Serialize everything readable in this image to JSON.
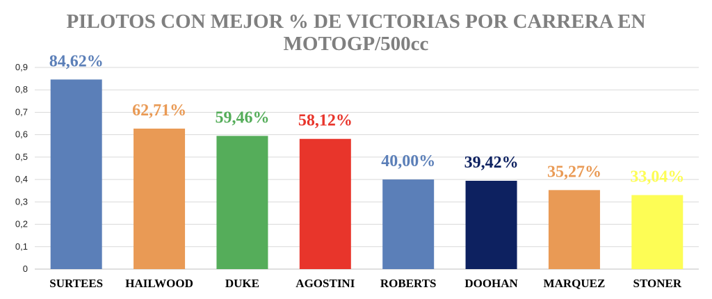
{
  "chart_data": {
    "type": "bar",
    "title_lines": [
      "PILOTOS CON MEJOR % DE VICTORIAS POR CARRERA EN",
      "MOTOGP/500cc"
    ],
    "categories": [
      "SURTEES",
      "HAILWOOD",
      "DUKE",
      "AGOSTINI",
      "ROBERTS",
      "DOOHAN",
      "MARQUEZ",
      "STONER"
    ],
    "values": [
      0.8462,
      0.6271,
      0.5946,
      0.5812,
      0.4,
      0.3942,
      0.3527,
      0.3304
    ],
    "data_labels": [
      "84,62%",
      "62,71%",
      "59,46%",
      "58,12%",
      "40,00%",
      "39,42%",
      "35,27%",
      "33,04%"
    ],
    "colors": [
      "#5b7fb8",
      "#e99a55",
      "#55ad5a",
      "#e8352b",
      "#5b7fb8",
      "#0d2160",
      "#e99a55",
      "#fdfd55"
    ],
    "y_ticks": [
      "0",
      "0,1",
      "0,2",
      "0,3",
      "0,4",
      "0,5",
      "0,6",
      "0,7",
      "0,8",
      "0,9"
    ],
    "ylim": [
      0,
      0.9
    ],
    "grid": true,
    "legend": "none",
    "xlabel": "",
    "ylabel": ""
  }
}
